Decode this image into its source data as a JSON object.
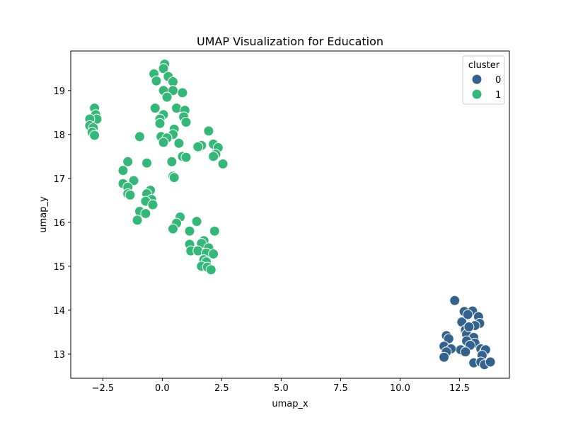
{
  "chart_data": {
    "type": "scatter",
    "title": "UMAP Visualization for Education",
    "xlabel": "umap_x",
    "ylabel": "umap_y",
    "xlim": [
      -3.85,
      14.6
    ],
    "ylim": [
      12.45,
      19.9
    ],
    "xticks": [
      -2.5,
      0.0,
      2.5,
      5.0,
      7.5,
      10.0,
      12.5
    ],
    "xtick_labels": [
      "−2.5",
      "0.0",
      "2.5",
      "5.0",
      "7.5",
      "10.0",
      "12.5"
    ],
    "yticks": [
      13,
      14,
      15,
      16,
      17,
      18,
      19
    ],
    "ytick_labels": [
      "13",
      "14",
      "15",
      "16",
      "17",
      "18",
      "19"
    ],
    "grid": false,
    "legend": {
      "title": "cluster",
      "placement": "top-right"
    },
    "series": [
      {
        "name": "0",
        "color": "#33638d",
        "points": [
          [
            12.3,
            14.22
          ],
          [
            12.7,
            13.97
          ],
          [
            13.05,
            13.98
          ],
          [
            12.6,
            13.73
          ],
          [
            12.85,
            13.9
          ],
          [
            13.3,
            13.85
          ],
          [
            13.35,
            13.7
          ],
          [
            13.15,
            13.65
          ],
          [
            12.75,
            13.55
          ],
          [
            12.8,
            13.45
          ],
          [
            13.1,
            13.38
          ],
          [
            12.8,
            13.3
          ],
          [
            13.15,
            13.25
          ],
          [
            12.95,
            13.2
          ],
          [
            12.55,
            13.1
          ],
          [
            12.75,
            13.05
          ],
          [
            11.95,
            13.42
          ],
          [
            12.05,
            13.35
          ],
          [
            11.85,
            13.18
          ],
          [
            12.15,
            13.12
          ],
          [
            11.95,
            13.05
          ],
          [
            11.85,
            12.93
          ],
          [
            13.4,
            13.12
          ],
          [
            13.55,
            13.05
          ],
          [
            13.6,
            13.1
          ],
          [
            13.45,
            12.97
          ],
          [
            13.1,
            12.8
          ],
          [
            13.4,
            12.82
          ],
          [
            13.55,
            12.76
          ],
          [
            13.8,
            12.82
          ],
          [
            12.9,
            13.62
          ]
        ]
      },
      {
        "name": "1",
        "color": "#35b779",
        "points": [
          [
            -2.85,
            18.6
          ],
          [
            -2.8,
            18.45
          ],
          [
            -2.75,
            18.35
          ],
          [
            -3.05,
            18.35
          ],
          [
            -3.05,
            18.2
          ],
          [
            -2.9,
            18.15
          ],
          [
            -2.95,
            18.05
          ],
          [
            -2.85,
            17.98
          ],
          [
            0.1,
            19.6
          ],
          [
            0.05,
            19.5
          ],
          [
            -0.35,
            19.38
          ],
          [
            0.25,
            19.32
          ],
          [
            -0.25,
            19.22
          ],
          [
            0.45,
            19.2
          ],
          [
            0.05,
            19.0
          ],
          [
            0.45,
            19.0
          ],
          [
            0.85,
            18.95
          ],
          [
            0.2,
            18.85
          ],
          [
            -0.3,
            18.6
          ],
          [
            0.6,
            18.6
          ],
          [
            0.95,
            18.55
          ],
          [
            0.05,
            18.45
          ],
          [
            0.9,
            18.4
          ],
          [
            -0.1,
            18.35
          ],
          [
            -0.1,
            18.25
          ],
          [
            1.0,
            18.28
          ],
          [
            0.5,
            18.12
          ],
          [
            0.45,
            18.0
          ],
          [
            -0.05,
            17.95
          ],
          [
            0.2,
            17.92
          ],
          [
            0.05,
            17.82
          ],
          [
            -0.95,
            17.95
          ],
          [
            0.7,
            17.8
          ],
          [
            1.95,
            18.08
          ],
          [
            2.15,
            17.78
          ],
          [
            2.35,
            17.7
          ],
          [
            2.25,
            17.55
          ],
          [
            2.15,
            17.5
          ],
          [
            1.65,
            17.75
          ],
          [
            1.5,
            17.72
          ],
          [
            0.85,
            17.5
          ],
          [
            1.0,
            17.48
          ],
          [
            2.55,
            17.33
          ],
          [
            0.4,
            17.38
          ],
          [
            -0.65,
            17.35
          ],
          [
            -1.45,
            17.38
          ],
          [
            -1.65,
            17.18
          ],
          [
            -1.2,
            16.95
          ],
          [
            -1.65,
            16.88
          ],
          [
            0.45,
            17.05
          ],
          [
            0.5,
            17.02
          ],
          [
            -1.45,
            16.8
          ],
          [
            -0.5,
            16.73
          ],
          [
            -0.65,
            16.65
          ],
          [
            -1.45,
            16.65
          ],
          [
            -1.35,
            16.62
          ],
          [
            -0.45,
            16.52
          ],
          [
            -0.7,
            16.48
          ],
          [
            -0.4,
            16.4
          ],
          [
            -0.95,
            16.25
          ],
          [
            -0.7,
            16.2
          ],
          [
            -1.05,
            16.05
          ],
          [
            0.75,
            16.12
          ],
          [
            1.45,
            16.02
          ],
          [
            0.6,
            15.98
          ],
          [
            0.45,
            15.85
          ],
          [
            1.15,
            15.8
          ],
          [
            2.2,
            15.8
          ],
          [
            1.75,
            15.58
          ],
          [
            1.65,
            15.52
          ],
          [
            1.15,
            15.5
          ],
          [
            1.95,
            15.42
          ],
          [
            1.2,
            15.35
          ],
          [
            1.5,
            15.35
          ],
          [
            1.85,
            15.3
          ],
          [
            2.15,
            15.28
          ],
          [
            1.75,
            15.15
          ],
          [
            1.85,
            15.1
          ],
          [
            1.65,
            15.0
          ],
          [
            1.9,
            14.98
          ],
          [
            2.05,
            14.92
          ]
        ]
      }
    ]
  }
}
